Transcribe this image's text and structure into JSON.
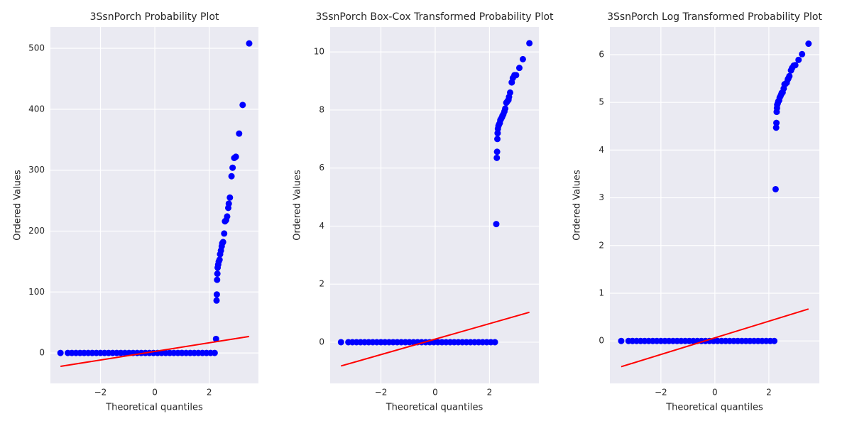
{
  "chart_data": [
    {
      "type": "scatter",
      "title": "3SsnPorch Probability Plot",
      "x_label": "Theoretical quantiles",
      "y_label": "Ordered Values",
      "color": "#0000ff",
      "grid": true,
      "xlim": [
        -3.84,
        3.81
      ],
      "ylim": [
        -50,
        535
      ],
      "xticks": [
        {
          "value": -2,
          "label": "−2"
        },
        0,
        2
      ],
      "yticks": [
        0,
        100,
        200,
        300,
        400,
        500
      ],
      "x": [
        -3.47,
        -3.2,
        -3.05,
        -2.9,
        -2.75,
        -2.6,
        -2.45,
        -2.3,
        -2.15,
        -2.0,
        -1.85,
        -1.7,
        -1.55,
        -1.4,
        -1.25,
        -1.1,
        -0.95,
        -0.8,
        -0.65,
        -0.5,
        -0.35,
        -0.2,
        -0.05,
        0.1,
        0.25,
        0.4,
        0.55,
        0.7,
        0.85,
        1.0,
        1.15,
        1.3,
        1.45,
        1.6,
        1.75,
        1.9,
        2.05,
        2.2,
        2.25,
        2.27,
        2.28,
        2.29,
        2.3,
        2.31,
        2.33,
        2.35,
        2.38,
        2.4,
        2.43,
        2.46,
        2.48,
        2.51,
        2.55,
        2.58,
        2.62,
        2.66,
        2.7,
        2.72,
        2.76,
        2.82,
        2.86,
        2.92,
        2.98,
        3.1,
        3.23,
        3.47
      ],
      "y": [
        0,
        0,
        0,
        0,
        0,
        0,
        0,
        0,
        0,
        0,
        0,
        0,
        0,
        0,
        0,
        0,
        0,
        0,
        0,
        0,
        0,
        0,
        0,
        0,
        0,
        0,
        0,
        0,
        0,
        0,
        0,
        0,
        0,
        0,
        0,
        0,
        0,
        0,
        23,
        86,
        96,
        120,
        130,
        140,
        145,
        150,
        153,
        162,
        168,
        175,
        180,
        182,
        196,
        216,
        218,
        224,
        238,
        245,
        255,
        290,
        304,
        320,
        322,
        360,
        407,
        508
      ],
      "fit": {
        "color": "#ff0000",
        "x": [
          -3.47,
          3.47
        ],
        "y": [
          -22,
          27
        ]
      }
    },
    {
      "type": "scatter",
      "title": "3SsnPorch Box-Cox Transformed Probability Plot",
      "x_label": "Theoretical quantiles",
      "y_label": "Ordered Values",
      "color": "#0000ff",
      "grid": true,
      "xlim": [
        -3.87,
        3.82
      ],
      "ylim": [
        -1.42,
        10.86
      ],
      "xticks": [
        {
          "value": -2,
          "label": "−2"
        },
        0,
        2
      ],
      "yticks": [
        0,
        2,
        4,
        6,
        8,
        10
      ],
      "x": [
        -3.47,
        -3.2,
        -3.05,
        -2.9,
        -2.75,
        -2.6,
        -2.45,
        -2.3,
        -2.15,
        -2.0,
        -1.85,
        -1.7,
        -1.55,
        -1.4,
        -1.25,
        -1.1,
        -0.95,
        -0.8,
        -0.65,
        -0.5,
        -0.35,
        -0.2,
        -0.05,
        0.1,
        0.25,
        0.4,
        0.55,
        0.7,
        0.85,
        1.0,
        1.15,
        1.3,
        1.45,
        1.6,
        1.75,
        1.9,
        2.05,
        2.2,
        2.25,
        2.27,
        2.28,
        2.29,
        2.3,
        2.31,
        2.33,
        2.35,
        2.38,
        2.4,
        2.43,
        2.46,
        2.48,
        2.51,
        2.55,
        2.58,
        2.62,
        2.66,
        2.7,
        2.72,
        2.76,
        2.82,
        2.86,
        2.92,
        2.98,
        3.1,
        3.23,
        3.47
      ],
      "y": [
        0,
        0,
        0,
        0,
        0,
        0,
        0,
        0,
        0,
        0,
        0,
        0,
        0,
        0,
        0,
        0,
        0,
        0,
        0,
        0,
        0,
        0,
        0,
        0,
        0,
        0,
        0,
        0,
        0,
        0,
        0,
        0,
        0,
        0,
        0,
        0,
        0,
        0,
        4.07,
        6.35,
        6.56,
        7.0,
        7.2,
        7.35,
        7.45,
        7.5,
        7.55,
        7.65,
        7.7,
        7.75,
        7.8,
        7.85,
        7.95,
        8.05,
        8.25,
        8.3,
        8.35,
        8.45,
        8.6,
        8.95,
        9.1,
        9.2,
        9.2,
        9.45,
        9.75,
        10.3
      ],
      "fit": {
        "color": "#ff0000",
        "x": [
          -3.47,
          3.47
        ],
        "y": [
          -0.82,
          1.03
        ]
      }
    },
    {
      "type": "scatter",
      "title": "3SsnPorch Log Transformed Probability Plot",
      "x_label": "Theoretical quantiles",
      "y_label": "Ordered Values",
      "color": "#0000ff",
      "grid": true,
      "xlim": [
        -3.89,
        3.87
      ],
      "ylim": [
        -0.89,
        6.58
      ],
      "xticks": [
        {
          "value": -2,
          "label": "−2"
        },
        0,
        2
      ],
      "yticks": [
        0,
        1,
        2,
        3,
        4,
        5,
        6
      ],
      "x": [
        -3.47,
        -3.2,
        -3.05,
        -2.9,
        -2.75,
        -2.6,
        -2.45,
        -2.3,
        -2.15,
        -2.0,
        -1.85,
        -1.7,
        -1.55,
        -1.4,
        -1.25,
        -1.1,
        -0.95,
        -0.8,
        -0.65,
        -0.5,
        -0.35,
        -0.2,
        -0.05,
        0.1,
        0.25,
        0.4,
        0.55,
        0.7,
        0.85,
        1.0,
        1.15,
        1.3,
        1.45,
        1.6,
        1.75,
        1.9,
        2.05,
        2.2,
        2.25,
        2.27,
        2.28,
        2.29,
        2.3,
        2.31,
        2.33,
        2.35,
        2.38,
        2.4,
        2.43,
        2.46,
        2.48,
        2.51,
        2.55,
        2.58,
        2.62,
        2.66,
        2.7,
        2.72,
        2.76,
        2.82,
        2.86,
        2.92,
        2.98,
        3.1,
        3.23,
        3.47
      ],
      "y": [
        0,
        0,
        0,
        0,
        0,
        0,
        0,
        0,
        0,
        0,
        0,
        0,
        0,
        0,
        0,
        0,
        0,
        0,
        0,
        0,
        0,
        0,
        0,
        0,
        0,
        0,
        0,
        0,
        0,
        0,
        0,
        0,
        0,
        0,
        0,
        0,
        0,
        0,
        3.18,
        4.47,
        4.57,
        4.8,
        4.88,
        4.95,
        4.98,
        5.02,
        5.04,
        5.1,
        5.13,
        5.17,
        5.2,
        5.21,
        5.29,
        5.38,
        5.39,
        5.41,
        5.48,
        5.5,
        5.55,
        5.67,
        5.72,
        5.77,
        5.78,
        5.89,
        6.01,
        6.23
      ],
      "fit": {
        "color": "#ff0000",
        "x": [
          -3.47,
          3.47
        ],
        "y": [
          -0.54,
          0.67
        ]
      }
    }
  ]
}
